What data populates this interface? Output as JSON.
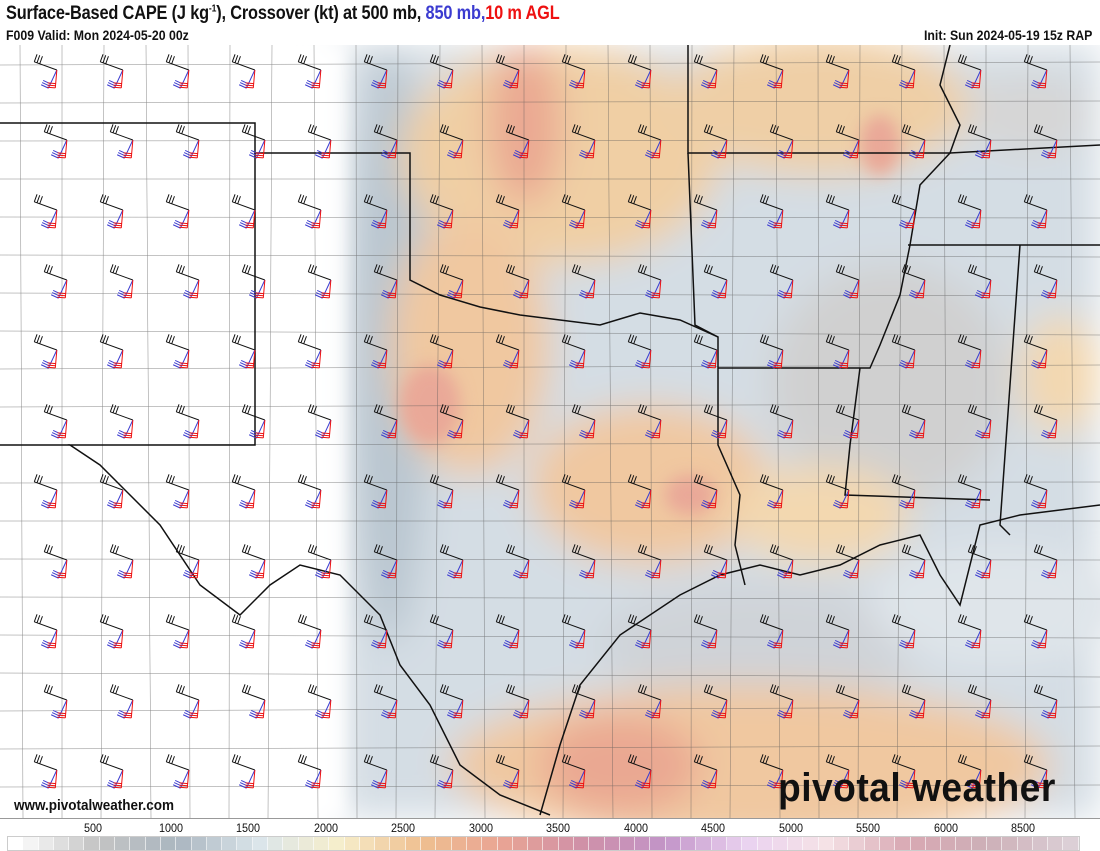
{
  "header": {
    "title_main": "Surface-Based CAPE (J kg",
    "title_sup": "-1",
    "title_rest": "), Crossover (kt) at 500 mb, ",
    "title_850": "850 mb",
    "title_sep": ",",
    "title_10m": "10 m AGL",
    "valid": "F009 Valid: Mon 2024-05-20 00z",
    "init": "Init: Sun 2024-05-19 15z RAP"
  },
  "watermark": {
    "website": "www.pivotalweather.com",
    "logo": "pivotal weather"
  },
  "colorbar": {
    "labels": [
      "500",
      "1000",
      "1500",
      "2000",
      "2500",
      "3000",
      "3500",
      "4000",
      "4500",
      "5000",
      "5500",
      "6000",
      "8500"
    ],
    "stops": [
      "#ffffff",
      "#c4c4c4",
      "#aab6c0",
      "#dbe5ea",
      "#f6eecb",
      "#efbf90",
      "#e9a494",
      "#cf90a8",
      "#c294c8",
      "#ead2f0",
      "#f5e2e6",
      "#d8a8b2",
      "#cdb0b8",
      "#dccfd6"
    ]
  },
  "legend_colors": {
    "500mb": "#111111",
    "850mb": "#3b3bd0",
    "10m": "#ee1111"
  }
}
